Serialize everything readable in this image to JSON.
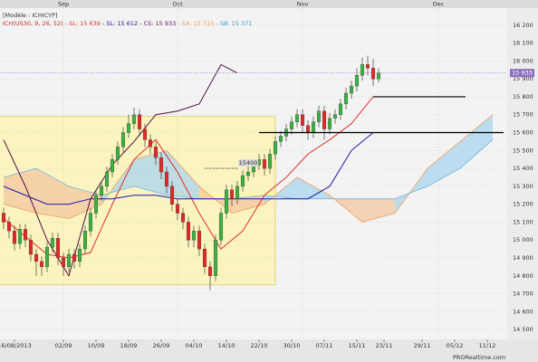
{
  "chart_data": {
    "type": "candlestick",
    "model": "[Modèle : ICHICYP]",
    "legend": [
      {
        "text": "ICH(US30, 9, 26, 52)",
        "color": "#c03030"
      },
      {
        "text": " - SL: 15 639",
        "color": "#e03030"
      },
      {
        "text": " - SL: 15 612",
        "color": "#2020a0"
      },
      {
        "text": " - CS: 15 933",
        "color": "#602060"
      },
      {
        "text": " - SA: 15 725",
        "color": "#f0a060"
      },
      {
        "text": " - SB: 15 371",
        "color": "#40a0d0"
      }
    ],
    "x": [
      0,
      1,
      2,
      3,
      4,
      5,
      6,
      7,
      8,
      9,
      10,
      11,
      12,
      13,
      14,
      15,
      16,
      17,
      18,
      19,
      20,
      21,
      22,
      23,
      24,
      25,
      26,
      27,
      28,
      29,
      30,
      31,
      32,
      33,
      34,
      35,
      36,
      37,
      38,
      39,
      40,
      41,
      42,
      43,
      44,
      45,
      46,
      47,
      48,
      49,
      50,
      51,
      52,
      53,
      54,
      55,
      56,
      57,
      58,
      59,
      60,
      61,
      62,
      63,
      64,
      65,
      66,
      67,
      68,
      69
    ],
    "open": [
      15150,
      15100,
      15050,
      14980,
      15060,
      15000,
      14920,
      14880,
      14850,
      14960,
      15010,
      14900,
      14850,
      14920,
      14880,
      14950,
      15050,
      15150,
      15250,
      15300,
      15380,
      15450,
      15520,
      15600,
      15650,
      15700,
      15620,
      15560,
      15520,
      15460,
      15380,
      15300,
      15200,
      15150,
      15100,
      15000,
      15050,
      14950,
      14850,
      14800,
      15000,
      15150,
      15280,
      15230,
      15300,
      15360,
      15380,
      15420,
      15450,
      15400,
      15480,
      15550,
      15580,
      15620,
      15660,
      15700,
      15640,
      15600,
      15660,
      15720,
      15620,
      15680,
      15700,
      15760,
      15820,
      15860,
      15920,
      15980,
      15960,
      15900
    ],
    "high": [
      15180,
      15130,
      15080,
      15090,
      15090,
      15030,
      14950,
      14910,
      14990,
      15040,
      15040,
      14930,
      14950,
      14950,
      14980,
      15080,
      15180,
      15280,
      15330,
      15410,
      15480,
      15550,
      15630,
      15700,
      15740,
      15730,
      15650,
      15590,
      15550,
      15490,
      15410,
      15330,
      15230,
      15180,
      15130,
      15080,
      15080,
      14980,
      14880,
      15030,
      15180,
      15310,
      15310,
      15330,
      15390,
      15410,
      15450,
      15480,
      15480,
      15510,
      15580,
      15610,
      15650,
      15690,
      15730,
      15730,
      15670,
      15690,
      15750,
      15750,
      15710,
      15730,
      15790,
      15850,
      15890,
      15960,
      16020,
      16030,
      16010,
      15960
    ],
    "low": [
      15060,
      15010,
      14940,
      14950,
      14960,
      14880,
      14800,
      14800,
      14820,
      14930,
      14860,
      14800,
      14820,
      14840,
      14850,
      14920,
      15020,
      15120,
      15220,
      15270,
      15350,
      15420,
      15490,
      15570,
      15620,
      15580,
      15520,
      15480,
      15420,
      15340,
      15260,
      15160,
      15110,
      15060,
      14960,
      14960,
      14910,
      14810,
      14720,
      14770,
      14970,
      15120,
      15190,
      15200,
      15270,
      15330,
      15350,
      15390,
      15360,
      15370,
      15450,
      15520,
      15550,
      15590,
      15630,
      15600,
      15560,
      15570,
      15630,
      15560,
      15590,
      15650,
      15670,
      15730,
      15790,
      15830,
      15890,
      15920,
      15860,
      15880
    ],
    "close": [
      15100,
      15050,
      14980,
      15060,
      15000,
      14920,
      14880,
      14850,
      14960,
      15010,
      14900,
      14850,
      14920,
      14880,
      14950,
      15050,
      15150,
      15250,
      15300,
      15380,
      15450,
      15520,
      15600,
      15650,
      15700,
      15620,
      15560,
      15520,
      15460,
      15380,
      15300,
      15200,
      15150,
      15100,
      15000,
      15050,
      14950,
      14850,
      14800,
      15000,
      15150,
      15280,
      15230,
      15300,
      15360,
      15380,
      15420,
      15450,
      15400,
      15480,
      15550,
      15580,
      15620,
      15660,
      15700,
      15640,
      15600,
      15660,
      15720,
      15620,
      15680,
      15700,
      15760,
      15820,
      15860,
      15920,
      15980,
      15960,
      15900,
      15933
    ],
    "up_color": "#3cb043",
    "down_color": "#e02828",
    "cloud": {
      "x": [
        0,
        6,
        12,
        18,
        24,
        30,
        36,
        42,
        48,
        54,
        60,
        66,
        72,
        78,
        84,
        90
      ],
      "senkou_a": {
        "color": "#f0a060",
        "values": [
          15200,
          15150,
          15120,
          15200,
          15450,
          15500,
          15300,
          15150,
          15200,
          15350,
          15250,
          15100,
          15150,
          15400,
          15550,
          15700
        ]
      },
      "senkou_b": {
        "color": "#70b8e0",
        "values": [
          15350,
          15400,
          15300,
          15250,
          15300,
          15250,
          15230,
          15230,
          15250,
          15230,
          15230,
          15230,
          15230,
          15300,
          15400,
          15560
        ]
      },
      "bull_fill": "#a9d4ee",
      "bear_fill": "#f3c7a0"
    },
    "lines": [
      {
        "color": "#e03030",
        "x": [
          0,
          4,
          8,
          12,
          16,
          20,
          24,
          28,
          32,
          36,
          40,
          44,
          48,
          52,
          56,
          60,
          64,
          68
        ],
        "values": [
          15120,
          15020,
          14920,
          14900,
          14930,
          15200,
          15450,
          15560,
          15380,
          15150,
          14950,
          15050,
          15250,
          15350,
          15480,
          15560,
          15650,
          15800
        ]
      },
      {
        "color": "#1818b0",
        "x": [
          0,
          4,
          8,
          12,
          16,
          20,
          24,
          28,
          32,
          36,
          40,
          44,
          48,
          52,
          56,
          60,
          64,
          68
        ],
        "values": [
          15300,
          15250,
          15200,
          15200,
          15230,
          15230,
          15250,
          15250,
          15230,
          15230,
          15230,
          15230,
          15230,
          15230,
          15230,
          15300,
          15500,
          15600
        ]
      },
      {
        "color": "#501040",
        "x": [
          0,
          4,
          8,
          12,
          16,
          20,
          24,
          28,
          32,
          36,
          40,
          43
        ],
        "values": [
          15560,
          15300,
          15000,
          14800,
          15230,
          15420,
          15550,
          15700,
          15720,
          15760,
          15980,
          15933
        ]
      }
    ],
    "zone": {
      "x": [
        -1,
        50
      ],
      "y": [
        14750,
        15690
      ],
      "fill": "#fbf4bf",
      "stroke": "#e2d47a"
    },
    "levels": [
      {
        "value": 15600,
        "x": [
          47,
          92
        ],
        "color": "#000000"
      },
      {
        "value": 15800,
        "x": [
          68,
          85
        ],
        "color": "#000000"
      },
      {
        "value": 15400,
        "x": [
          37,
          43
        ],
        "color": "#000000",
        "label": "15400"
      }
    ],
    "last": {
      "value": 15933,
      "label": "15 933",
      "color": "#9070c0"
    },
    "xlim": [
      -0.5,
      92.5
    ],
    "ylim": [
      14460,
      16270
    ],
    "yticks": [
      {
        "value": 16200,
        "label": "16 200"
      },
      {
        "value": 16100,
        "label": "16 100"
      },
      {
        "value": 16000,
        "label": "16 000"
      },
      {
        "value": 15900,
        "label": "15 900"
      },
      {
        "value": 15800,
        "label": "15 800"
      },
      {
        "value": 15700,
        "label": "15 700"
      },
      {
        "value": 15600,
        "label": "15 600"
      },
      {
        "value": 15500,
        "label": "15 500"
      },
      {
        "value": 15400,
        "label": "15 400"
      },
      {
        "value": 15300,
        "label": "15 300"
      },
      {
        "value": 15200,
        "label": "15 200"
      },
      {
        "value": 15100,
        "label": "15 100"
      },
      {
        "value": 15000,
        "label": "15 000"
      },
      {
        "value": 14900,
        "label": "14 900"
      },
      {
        "value": 14800,
        "label": "14 800"
      },
      {
        "value": 14700,
        "label": "14 700"
      },
      {
        "value": 14600,
        "label": "14 600"
      },
      {
        "value": 14500,
        "label": "14 500"
      }
    ],
    "xticks": [
      {
        "value": 2,
        "label": "16/08/2013"
      },
      {
        "value": 11,
        "label": "02/09"
      },
      {
        "value": 17,
        "label": "10/09"
      },
      {
        "value": 23,
        "label": "18/09"
      },
      {
        "value": 29,
        "label": "26/09"
      },
      {
        "value": 35,
        "label": "04/10"
      },
      {
        "value": 41,
        "label": "14/10"
      },
      {
        "value": 47,
        "label": "22/10"
      },
      {
        "value": 53,
        "label": "30/10"
      },
      {
        "value": 59,
        "label": "07/11"
      },
      {
        "value": 65,
        "label": "15/11"
      },
      {
        "value": 70,
        "label": "23/11"
      },
      {
        "value": 77,
        "label": "29/11"
      },
      {
        "value": 83,
        "label": "05/12"
      },
      {
        "value": 89,
        "label": "11/12"
      }
    ],
    "month_ticks": [
      {
        "value": 11,
        "label": "Sep"
      },
      {
        "value": 32,
        "label": "Oct"
      },
      {
        "value": 55,
        "label": "Nov"
      },
      {
        "value": 80,
        "label": "Dec"
      }
    ],
    "grid": true,
    "footer": "PRORealtime.com"
  }
}
